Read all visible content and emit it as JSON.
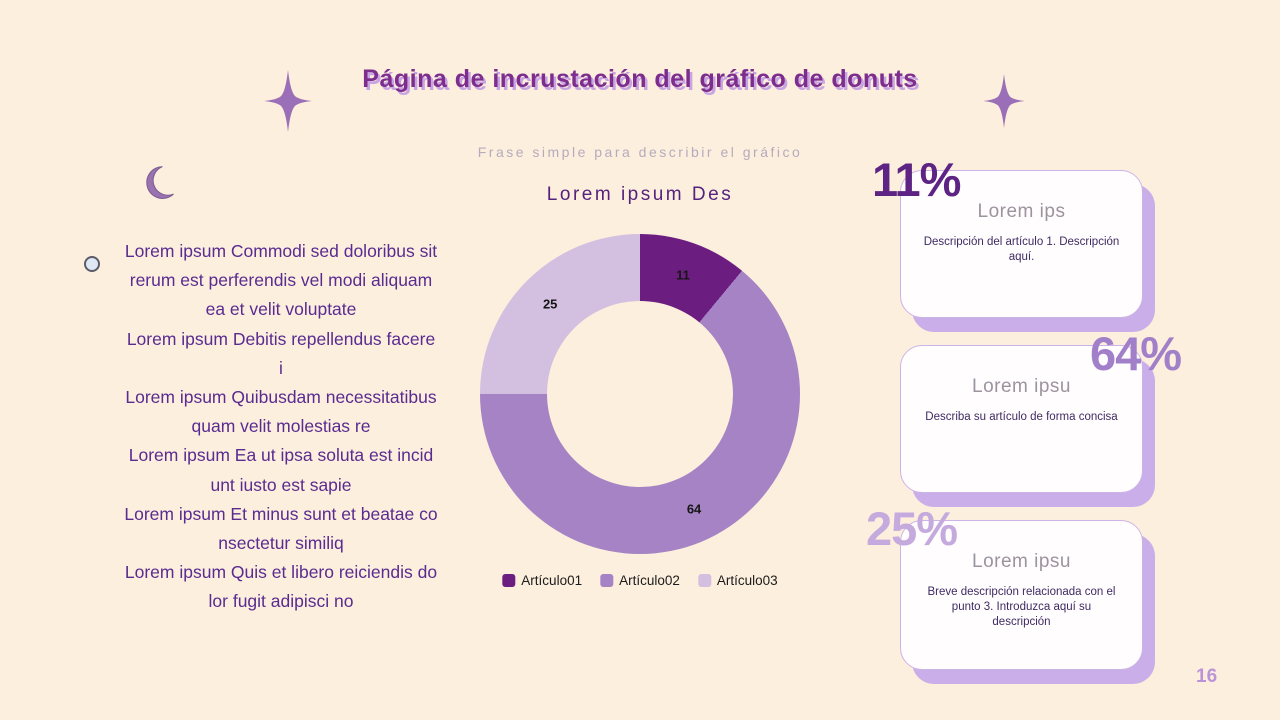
{
  "page": {
    "number": "16",
    "background_color": "#fcefdd"
  },
  "header": {
    "title": "Página de incrustación del gráfico de donuts",
    "subtitle": "Frase simple para describir el gráfico",
    "title_color": "#7d2e8d",
    "title_shadow_color": "#c9a4e2"
  },
  "left_text": {
    "paragraphs": [
      "Lorem ipsum Commodi sed doloribus sit rerum est perferendis vel modi aliquam ea et velit voluptate",
      "Lorem ipsum Debitis repellendus facere i",
      "Lorem ipsum Quibusdam necessitatibus quam velit molestias re",
      "Lorem ipsum Ea ut ipsa soluta est incidunt iusto est sapie",
      "Lorem ipsum Et minus sunt et beatae consectetur similiq",
      "Lorem ipsum Quis et libero reiciendis dolor fugit adipisci no"
    ]
  },
  "chart_data": {
    "type": "pie",
    "subtype": "donut",
    "title": "Lorem ipsum Des",
    "categories": [
      "Artículo01",
      "Artículo02",
      "Artículo03"
    ],
    "values": [
      11,
      64,
      25
    ],
    "legend": [
      "Artículo01",
      "Artículo02",
      "Artículo03"
    ],
    "colors": [
      "#6c1d80",
      "#a583c4",
      "#d3bfe0"
    ],
    "legend_position": "bottom",
    "data_labels": [
      11,
      64,
      25
    ],
    "start_angle_deg": 0,
    "direction": "clockwise"
  },
  "cards": [
    {
      "percent": "11%",
      "percent_color": "#5d2483",
      "title": "Lorem ips",
      "description": "Descripción del artículo 1. Descripción aquí."
    },
    {
      "percent": "64%",
      "percent_color": "#a27fc9",
      "title": "Lorem ipsu",
      "description": "Describa su artículo de forma concisa"
    },
    {
      "percent": "25%",
      "percent_color": "#c5aade",
      "title": "Lorem ipsu",
      "description": "Breve descripción relacionada con el punto 3. Introduzca aquí su descripción"
    }
  ]
}
